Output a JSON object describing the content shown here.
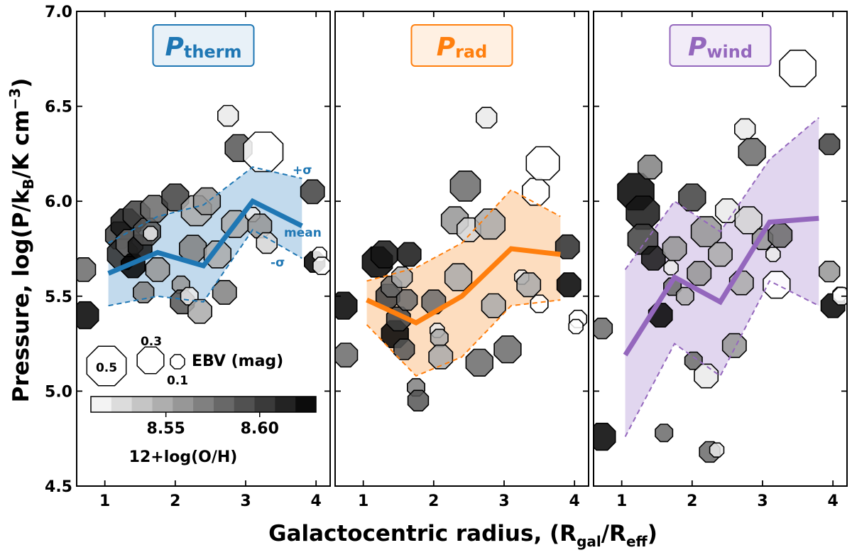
{
  "figure": {
    "ylabel": "Pressure, log(P/k",
    "ylabel_sub_B": "B",
    "ylabel_tail": "/K cm",
    "ylabel_sup": "−3",
    "ylabel_close": ")",
    "xlabel": "Galactocentric radius, (R",
    "xlabel_sub_gal": "gal",
    "xlabel_slash": "/R",
    "xlabel_sub_eff": "eff",
    "xlabel_close": ")",
    "xlim": [
      0.6,
      4.2
    ],
    "ylim": [
      4.5,
      7.0
    ],
    "xticks": [
      1,
      2,
      3,
      4
    ],
    "yticks": [
      4.5,
      5.0,
      5.5,
      6.0,
      6.5,
      7.0
    ],
    "ytick_labels": [
      "4.5",
      "5.0",
      "5.5",
      "6.0",
      "6.5",
      "7.0"
    ],
    "xtick_labels": [
      "1",
      "2",
      "3",
      "4"
    ]
  },
  "legend": {
    "size_labels": [
      "0.5",
      "0.3",
      "0.1"
    ],
    "size_values": [
      0.5,
      0.3,
      0.1
    ],
    "size_title": "EBV (mag)",
    "colorbar_ticks": [
      "8.55",
      "8.60"
    ],
    "colorbar_tick_values": [
      8.55,
      8.6
    ],
    "colorbar_range": [
      8.51,
      8.63
    ],
    "colorbar_label": "12+log(O/H)",
    "band_labels": {
      "plus": "+σ",
      "mean": "mean",
      "minus": "-σ"
    }
  },
  "chart_data": [
    {
      "type": "scatter",
      "panel": "therm",
      "title_main": "P",
      "title_sub": "therm",
      "color": "#1f77b4",
      "band_fill": "#b7d3ea",
      "title_fill": "#e8f1f8",
      "points": [
        {
          "x": 0.7,
          "y": 5.64,
          "z": 8.58,
          "e": 0.25
        },
        {
          "x": 0.72,
          "y": 5.4,
          "z": 8.63,
          "e": 0.3
        },
        {
          "x": 1.2,
          "y": 5.82,
          "z": 8.6,
          "e": 0.3
        },
        {
          "x": 1.25,
          "y": 5.72,
          "z": 8.61,
          "e": 0.35
        },
        {
          "x": 1.3,
          "y": 5.88,
          "z": 8.62,
          "e": 0.35
        },
        {
          "x": 1.35,
          "y": 5.78,
          "z": 8.58,
          "e": 0.3
        },
        {
          "x": 1.4,
          "y": 5.66,
          "z": 8.63,
          "e": 0.25
        },
        {
          "x": 1.45,
          "y": 5.93,
          "z": 8.6,
          "e": 0.3
        },
        {
          "x": 1.5,
          "y": 5.76,
          "z": 8.62,
          "e": 0.25
        },
        {
          "x": 1.55,
          "y": 5.52,
          "z": 8.57,
          "e": 0.2
        },
        {
          "x": 1.6,
          "y": 5.84,
          "z": 8.59,
          "e": 0.3
        },
        {
          "x": 1.65,
          "y": 5.83,
          "z": 8.52,
          "e": 0.1
        },
        {
          "x": 1.7,
          "y": 5.96,
          "z": 8.58,
          "e": 0.3
        },
        {
          "x": 1.75,
          "y": 5.64,
          "z": 8.56,
          "e": 0.25
        },
        {
          "x": 2.0,
          "y": 6.02,
          "z": 8.6,
          "e": 0.3
        },
        {
          "x": 2.08,
          "y": 5.56,
          "z": 8.56,
          "e": 0.15
        },
        {
          "x": 2.1,
          "y": 5.47,
          "z": 8.59,
          "e": 0.25
        },
        {
          "x": 2.2,
          "y": 5.5,
          "z": 8.52,
          "e": 0.15
        },
        {
          "x": 2.25,
          "y": 5.75,
          "z": 8.57,
          "e": 0.3
        },
        {
          "x": 2.3,
          "y": 5.95,
          "z": 8.55,
          "e": 0.35
        },
        {
          "x": 2.35,
          "y": 5.42,
          "z": 8.55,
          "e": 0.25
        },
        {
          "x": 2.45,
          "y": 6.0,
          "z": 8.56,
          "e": 0.3
        },
        {
          "x": 2.6,
          "y": 5.72,
          "z": 8.55,
          "e": 0.3
        },
        {
          "x": 2.7,
          "y": 5.52,
          "z": 8.57,
          "e": 0.25
        },
        {
          "x": 2.75,
          "y": 6.45,
          "z": 8.52,
          "e": 0.2
        },
        {
          "x": 2.85,
          "y": 5.88,
          "z": 8.55,
          "e": 0.3
        },
        {
          "x": 2.9,
          "y": 6.28,
          "z": 8.59,
          "e": 0.3
        },
        {
          "x": 3.1,
          "y": 5.93,
          "z": 8.52,
          "e": 0.1
        },
        {
          "x": 3.25,
          "y": 6.26,
          "z": 8.5,
          "e": 0.5
        },
        {
          "x": 3.2,
          "y": 5.87,
          "z": 8.56,
          "e": 0.25
        },
        {
          "x": 3.3,
          "y": 5.78,
          "z": 8.53,
          "e": 0.2
        },
        {
          "x": 3.95,
          "y": 6.05,
          "z": 8.6,
          "e": 0.25
        },
        {
          "x": 3.98,
          "y": 5.68,
          "z": 8.63,
          "e": 0.2
        },
        {
          "x": 4.05,
          "y": 5.72,
          "z": 8.5,
          "e": 0.1
        },
        {
          "x": 4.08,
          "y": 5.66,
          "z": 8.5,
          "e": 0.15
        }
      ],
      "mean": {
        "x": [
          1.05,
          1.75,
          2.4,
          3.1,
          3.8
        ],
        "y": [
          5.62,
          5.73,
          5.66,
          6.0,
          5.87
        ]
      },
      "upper": {
        "x": [
          1.05,
          1.75,
          2.4,
          3.1,
          3.8
        ],
        "y": [
          5.78,
          5.92,
          5.98,
          6.18,
          6.12
        ]
      },
      "lower": {
        "x": [
          1.05,
          1.75,
          2.4,
          3.1,
          3.8
        ],
        "y": [
          5.45,
          5.5,
          5.47,
          5.85,
          5.7
        ]
      }
    },
    {
      "type": "scatter",
      "panel": "rad",
      "title_main": "P",
      "title_sub": "rad",
      "color": "#ff7f0e",
      "band_fill": "#fdd7b4",
      "title_fill": "#fff0e2",
      "points": [
        {
          "x": 0.72,
          "y": 5.45,
          "z": 8.63,
          "e": 0.3
        },
        {
          "x": 0.75,
          "y": 5.19,
          "z": 8.58,
          "e": 0.25
        },
        {
          "x": 1.2,
          "y": 5.68,
          "z": 8.63,
          "e": 0.35
        },
        {
          "x": 1.3,
          "y": 5.72,
          "z": 8.62,
          "e": 0.3
        },
        {
          "x": 1.35,
          "y": 5.5,
          "z": 8.6,
          "e": 0.25
        },
        {
          "x": 1.4,
          "y": 5.55,
          "z": 8.58,
          "e": 0.2
        },
        {
          "x": 1.45,
          "y": 5.3,
          "z": 8.63,
          "e": 0.3
        },
        {
          "x": 1.5,
          "y": 5.38,
          "z": 8.6,
          "e": 0.25
        },
        {
          "x": 1.55,
          "y": 5.6,
          "z": 8.55,
          "e": 0.2
        },
        {
          "x": 1.58,
          "y": 5.22,
          "z": 8.59,
          "e": 0.2
        },
        {
          "x": 1.62,
          "y": 5.48,
          "z": 8.58,
          "e": 0.2
        },
        {
          "x": 1.65,
          "y": 5.72,
          "z": 8.62,
          "e": 0.25
        },
        {
          "x": 1.75,
          "y": 5.02,
          "z": 8.57,
          "e": 0.15
        },
        {
          "x": 1.78,
          "y": 4.95,
          "z": 8.59,
          "e": 0.2
        },
        {
          "x": 2.05,
          "y": 5.32,
          "z": 8.52,
          "e": 0.1
        },
        {
          "x": 2.08,
          "y": 5.28,
          "z": 8.55,
          "e": 0.15
        },
        {
          "x": 2.0,
          "y": 5.47,
          "z": 8.58,
          "e": 0.25
        },
        {
          "x": 2.1,
          "y": 5.18,
          "z": 8.55,
          "e": 0.25
        },
        {
          "x": 2.3,
          "y": 5.9,
          "z": 8.56,
          "e": 0.3
        },
        {
          "x": 2.35,
          "y": 5.6,
          "z": 8.55,
          "e": 0.3
        },
        {
          "x": 2.45,
          "y": 6.08,
          "z": 8.58,
          "e": 0.35
        },
        {
          "x": 2.5,
          "y": 5.85,
          "z": 8.53,
          "e": 0.25
        },
        {
          "x": 2.65,
          "y": 5.15,
          "z": 8.58,
          "e": 0.3
        },
        {
          "x": 2.75,
          "y": 6.44,
          "z": 8.52,
          "e": 0.2
        },
        {
          "x": 2.8,
          "y": 5.88,
          "z": 8.55,
          "e": 0.35
        },
        {
          "x": 2.85,
          "y": 5.45,
          "z": 8.55,
          "e": 0.25
        },
        {
          "x": 3.05,
          "y": 5.22,
          "z": 8.58,
          "e": 0.3
        },
        {
          "x": 3.25,
          "y": 5.6,
          "z": 8.52,
          "e": 0.1
        },
        {
          "x": 3.35,
          "y": 5.56,
          "z": 8.55,
          "e": 0.25
        },
        {
          "x": 3.45,
          "y": 6.05,
          "z": 8.5,
          "e": 0.3
        },
        {
          "x": 3.5,
          "y": 5.46,
          "z": 8.5,
          "e": 0.15
        },
        {
          "x": 3.55,
          "y": 6.2,
          "z": 8.5,
          "e": 0.4
        },
        {
          "x": 3.9,
          "y": 5.76,
          "z": 8.61,
          "e": 0.25
        },
        {
          "x": 3.92,
          "y": 5.56,
          "z": 8.63,
          "e": 0.25
        },
        {
          "x": 4.05,
          "y": 5.38,
          "z": 8.5,
          "e": 0.15
        },
        {
          "x": 4.02,
          "y": 5.34,
          "z": 8.5,
          "e": 0.1
        }
      ],
      "mean": {
        "x": [
          1.05,
          1.75,
          2.4,
          3.1,
          3.8
        ],
        "y": [
          5.48,
          5.36,
          5.5,
          5.75,
          5.72
        ]
      },
      "upper": {
        "x": [
          1.05,
          1.75,
          2.4,
          3.1,
          3.8
        ],
        "y": [
          5.58,
          5.65,
          5.78,
          6.06,
          5.92
        ]
      },
      "lower": {
        "x": [
          1.05,
          1.75,
          2.4,
          3.1,
          3.8
        ],
        "y": [
          5.35,
          5.08,
          5.18,
          5.45,
          5.48
        ]
      }
    },
    {
      "type": "scatter",
      "panel": "wind",
      "title_main": "P",
      "title_sub": "wind",
      "color": "#9467bd",
      "band_fill": "#dccfec",
      "title_fill": "#f2ecf8",
      "points": [
        {
          "x": 0.72,
          "y": 5.33,
          "z": 8.58,
          "e": 0.2
        },
        {
          "x": 0.72,
          "y": 4.76,
          "z": 8.63,
          "e": 0.3
        },
        {
          "x": 1.2,
          "y": 6.05,
          "z": 8.63,
          "e": 0.45
        },
        {
          "x": 1.3,
          "y": 5.94,
          "z": 8.62,
          "e": 0.4
        },
        {
          "x": 1.3,
          "y": 5.8,
          "z": 8.6,
          "e": 0.35
        },
        {
          "x": 1.4,
          "y": 6.18,
          "z": 8.57,
          "e": 0.25
        },
        {
          "x": 1.45,
          "y": 5.7,
          "z": 8.62,
          "e": 0.25
        },
        {
          "x": 1.55,
          "y": 5.4,
          "z": 8.63,
          "e": 0.25
        },
        {
          "x": 1.6,
          "y": 4.78,
          "z": 8.58,
          "e": 0.15
        },
        {
          "x": 1.7,
          "y": 5.65,
          "z": 8.52,
          "e": 0.1
        },
        {
          "x": 1.72,
          "y": 5.55,
          "z": 8.58,
          "e": 0.15
        },
        {
          "x": 1.75,
          "y": 5.75,
          "z": 8.56,
          "e": 0.25
        },
        {
          "x": 1.9,
          "y": 5.5,
          "z": 8.55,
          "e": 0.15
        },
        {
          "x": 2.0,
          "y": 6.02,
          "z": 8.6,
          "e": 0.3
        },
        {
          "x": 2.02,
          "y": 5.16,
          "z": 8.58,
          "e": 0.15
        },
        {
          "x": 2.1,
          "y": 5.62,
          "z": 8.56,
          "e": 0.25
        },
        {
          "x": 2.2,
          "y": 5.84,
          "z": 8.56,
          "e": 0.35
        },
        {
          "x": 2.2,
          "y": 5.08,
          "z": 8.52,
          "e": 0.25
        },
        {
          "x": 2.25,
          "y": 4.68,
          "z": 8.58,
          "e": 0.2
        },
        {
          "x": 2.35,
          "y": 4.69,
          "z": 8.52,
          "e": 0.1
        },
        {
          "x": 2.4,
          "y": 5.72,
          "z": 8.55,
          "e": 0.25
        },
        {
          "x": 2.5,
          "y": 5.95,
          "z": 8.52,
          "e": 0.25
        },
        {
          "x": 2.6,
          "y": 5.24,
          "z": 8.56,
          "e": 0.25
        },
        {
          "x": 2.7,
          "y": 5.57,
          "z": 8.55,
          "e": 0.25
        },
        {
          "x": 2.8,
          "y": 5.9,
          "z": 8.53,
          "e": 0.3
        },
        {
          "x": 2.75,
          "y": 6.38,
          "z": 8.52,
          "e": 0.2
        },
        {
          "x": 2.85,
          "y": 6.26,
          "z": 8.58,
          "e": 0.3
        },
        {
          "x": 3.0,
          "y": 5.8,
          "z": 8.56,
          "e": 0.2
        },
        {
          "x": 3.15,
          "y": 5.72,
          "z": 8.52,
          "e": 0.1
        },
        {
          "x": 3.2,
          "y": 5.56,
          "z": 8.5,
          "e": 0.3
        },
        {
          "x": 3.25,
          "y": 5.82,
          "z": 8.58,
          "e": 0.25
        },
        {
          "x": 3.5,
          "y": 6.7,
          "z": 8.5,
          "e": 0.45
        },
        {
          "x": 3.95,
          "y": 6.3,
          "z": 8.6,
          "e": 0.2
        },
        {
          "x": 3.95,
          "y": 5.63,
          "z": 8.56,
          "e": 0.2
        },
        {
          "x": 4.0,
          "y": 5.45,
          "z": 8.63,
          "e": 0.25
        },
        {
          "x": 4.1,
          "y": 5.51,
          "z": 8.5,
          "e": 0.1
        },
        {
          "x": 4.12,
          "y": 5.5,
          "z": 8.5,
          "e": 0.15
        }
      ],
      "mean": {
        "x": [
          1.05,
          1.75,
          2.4,
          3.1,
          3.8
        ],
        "y": [
          5.19,
          5.6,
          5.47,
          5.89,
          5.91
        ]
      },
      "upper": {
        "x": [
          1.05,
          1.75,
          2.4,
          3.1,
          3.8
        ],
        "y": [
          5.64,
          6.0,
          5.84,
          6.22,
          6.44
        ]
      },
      "lower": {
        "x": [
          1.05,
          1.75,
          2.4,
          3.1,
          3.8
        ],
        "y": [
          4.76,
          5.25,
          5.08,
          5.58,
          5.45
        ]
      }
    }
  ]
}
